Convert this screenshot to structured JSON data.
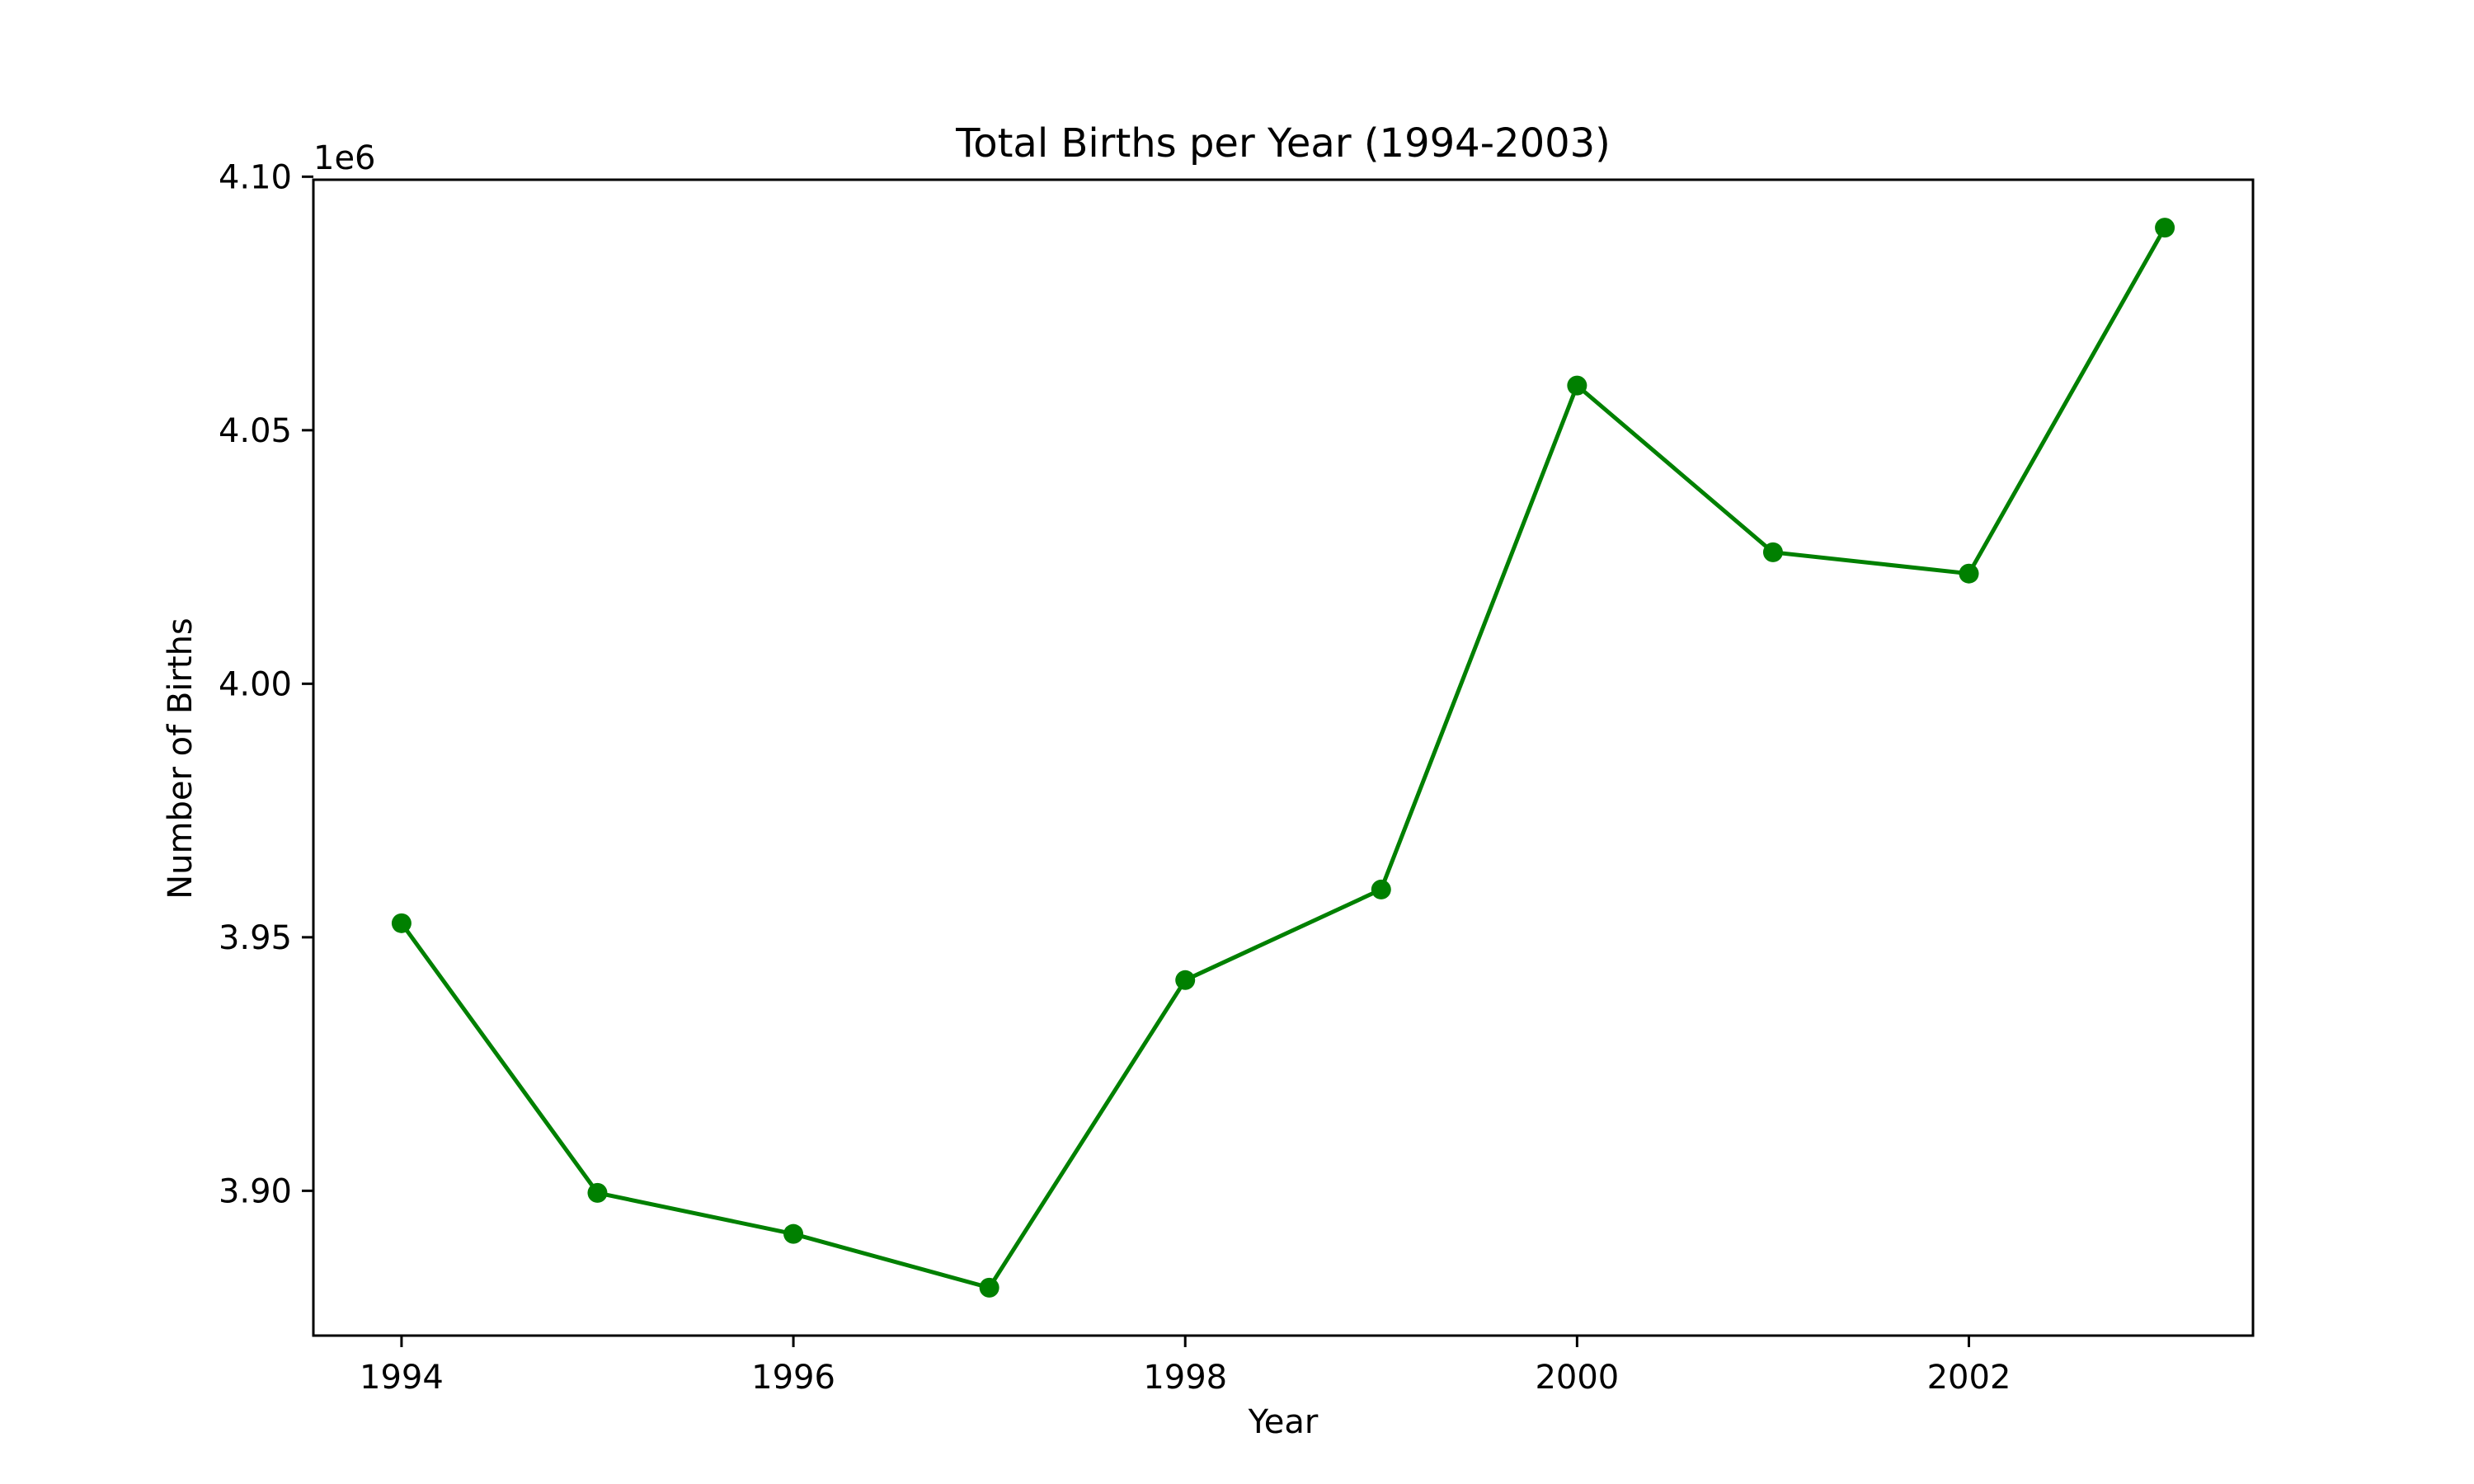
{
  "chart_data": {
    "type": "line",
    "title": "Total Births per Year (1994-2003)",
    "xlabel": "Year",
    "ylabel": "Number of Births",
    "y_offset_label": "1e6",
    "x": [
      1994,
      1995,
      1996,
      1997,
      1998,
      1999,
      2000,
      2001,
      2002,
      2003
    ],
    "series": [
      {
        "values": [
          3952767,
          3899589,
          3891494,
          3880894,
          3941553,
          3959417,
          4058814,
          4025933,
          4021726,
          4089950
        ],
        "color": "#008000",
        "marker": "circle"
      }
    ],
    "xlim": [
      1993.55,
      2003.45
    ],
    "ylim": [
      3871441,
      4099403
    ],
    "x_ticks": [
      1994,
      1996,
      1998,
      2000,
      2002
    ],
    "x_tick_labels": [
      "1994",
      "1996",
      "1998",
      "2000",
      "2002"
    ],
    "y_ticks": [
      3900000,
      3950000,
      4000000,
      4050000,
      4100000
    ],
    "y_tick_labels": [
      "3.90",
      "3.95",
      "4.00",
      "4.05",
      "4.10"
    ],
    "grid": false,
    "legend": "none"
  }
}
